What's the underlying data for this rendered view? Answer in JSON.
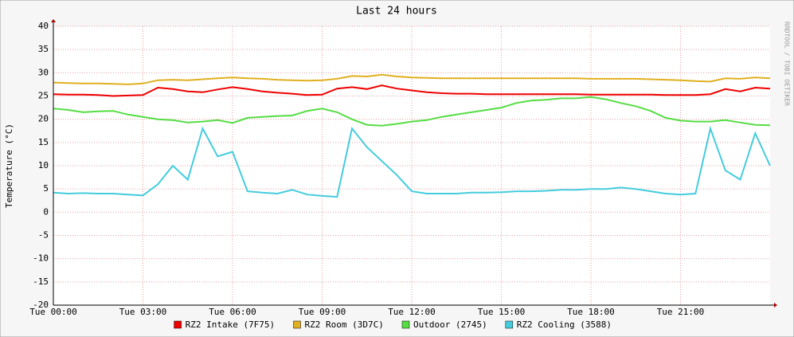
{
  "chart_data": {
    "type": "line",
    "title": "Last 24 hours",
    "y_label": "Temperature (°C)",
    "watermark": "RRDTOOL / TOBI OETIKER",
    "grid": true,
    "legend": "bottom",
    "x": [
      0,
      0.5,
      1,
      1.5,
      2,
      2.5,
      3,
      3.5,
      4,
      4.5,
      5,
      5.5,
      6,
      6.5,
      7,
      7.5,
      8,
      8.5,
      9,
      9.5,
      10,
      10.5,
      11,
      11.5,
      12,
      12.5,
      13,
      13.5,
      14,
      14.5,
      15,
      15.5,
      16,
      16.5,
      17,
      17.5,
      18,
      18.5,
      19,
      19.5,
      20,
      20.5,
      21,
      21.5,
      22,
      22.5,
      23,
      23.5,
      24
    ],
    "xlim": [
      0,
      24
    ],
    "xticks": [
      {
        "value": 0,
        "label": "Tue 00:00"
      },
      {
        "value": 3,
        "label": "Tue 03:00"
      },
      {
        "value": 6,
        "label": "Tue 06:00"
      },
      {
        "value": 9,
        "label": "Tue 09:00"
      },
      {
        "value": 12,
        "label": "Tue 12:00"
      },
      {
        "value": 15,
        "label": "Tue 15:00"
      },
      {
        "value": 18,
        "label": "Tue 18:00"
      },
      {
        "value": 21,
        "label": "Tue 21:00"
      }
    ],
    "ylim": [
      -20,
      40
    ],
    "yticks": [
      40,
      35,
      30,
      25,
      20,
      15,
      10,
      5,
      0,
      -5,
      -10,
      -15,
      -20
    ],
    "series": [
      {
        "name": "RZ2 Intake (7F75)",
        "color": "#ee0000",
        "values": [
          25.4,
          25.3,
          25.3,
          25.2,
          25.0,
          25.1,
          25.2,
          26.8,
          26.5,
          26.0,
          25.8,
          26.4,
          26.9,
          26.5,
          26.0,
          25.7,
          25.5,
          25.2,
          25.3,
          26.6,
          26.9,
          26.5,
          27.3,
          26.6,
          26.2,
          25.8,
          25.6,
          25.5,
          25.5,
          25.4,
          25.4,
          25.4,
          25.4,
          25.4,
          25.4,
          25.4,
          25.3,
          25.3,
          25.3,
          25.3,
          25.3,
          25.2,
          25.2,
          25.2,
          25.4,
          26.5,
          26.0,
          26.8,
          26.6
        ]
      },
      {
        "name": "RZ2 Room (3D7C)",
        "color": "#e0b020",
        "values": [
          27.9,
          27.8,
          27.7,
          27.7,
          27.6,
          27.5,
          27.7,
          28.4,
          28.5,
          28.4,
          28.6,
          28.8,
          29.0,
          28.8,
          28.7,
          28.5,
          28.4,
          28.3,
          28.4,
          28.7,
          29.3,
          29.2,
          29.6,
          29.2,
          29.0,
          28.9,
          28.8,
          28.8,
          28.8,
          28.8,
          28.8,
          28.8,
          28.8,
          28.8,
          28.8,
          28.8,
          28.7,
          28.7,
          28.7,
          28.7,
          28.6,
          28.5,
          28.4,
          28.2,
          28.1,
          28.8,
          28.7,
          29.0,
          28.8
        ]
      },
      {
        "name": "Outdoor (2745)",
        "color": "#55dd44",
        "values": [
          22.3,
          22.0,
          21.5,
          21.7,
          21.8,
          21.0,
          20.5,
          20.0,
          19.8,
          19.3,
          19.5,
          19.8,
          19.2,
          20.3,
          20.5,
          20.7,
          20.8,
          21.8,
          22.3,
          21.5,
          20.0,
          18.8,
          18.6,
          19.0,
          19.5,
          19.8,
          20.5,
          21.0,
          21.5,
          22.0,
          22.5,
          23.5,
          24.0,
          24.2,
          24.5,
          24.5,
          24.8,
          24.3,
          23.5,
          22.8,
          21.8,
          20.3,
          19.7,
          19.5,
          19.5,
          19.8,
          19.3,
          18.8,
          18.7
        ]
      },
      {
        "name": "RZ2 Cooling (3588)",
        "color": "#44ccdd",
        "values": [
          4.2,
          4.0,
          4.1,
          4.0,
          4.0,
          3.8,
          3.6,
          6.0,
          10.0,
          7.0,
          18.0,
          12.0,
          13.0,
          4.5,
          4.2,
          4.0,
          4.8,
          3.8,
          3.5,
          3.3,
          18.0,
          14.0,
          11.0,
          8.0,
          4.5,
          4.0,
          4.0,
          4.0,
          4.2,
          4.2,
          4.3,
          4.5,
          4.5,
          4.6,
          4.8,
          4.8,
          5.0,
          5.0,
          5.3,
          5.0,
          4.5,
          4.0,
          3.8,
          4.0,
          18.0,
          9.0,
          7.0,
          17.0,
          10.0
        ]
      }
    ]
  }
}
